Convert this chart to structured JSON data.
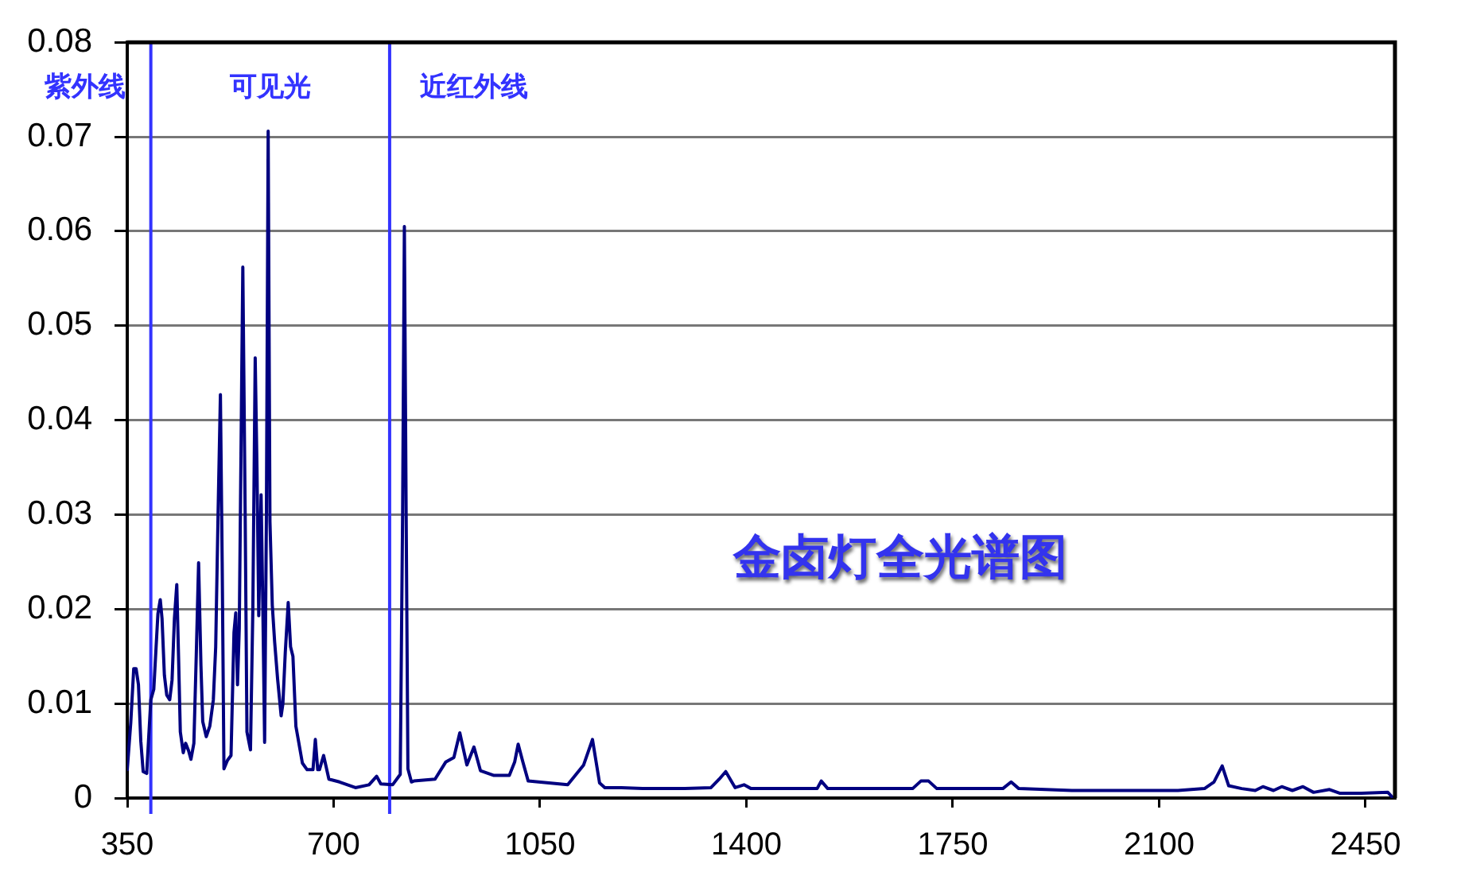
{
  "chart_data": {
    "type": "line",
    "title": "金卤灯全光谱图",
    "annotations": [
      "紫外线",
      "可见光",
      "近红外线"
    ],
    "series": [
      {
        "color": "#000080",
        "x": [
          350,
          356,
          361,
          365,
          369,
          373,
          377,
          383,
          386,
          390,
          395,
          402,
          406,
          409,
          413,
          417,
          422,
          426,
          430,
          434,
          437,
          440,
          445,
          449,
          454,
          458,
          463,
          467,
          471,
          475,
          478,
          484,
          490,
          496,
          500,
          504,
          508,
          511,
          514,
          520,
          526,
          531,
          534,
          537,
          540,
          546,
          550,
          553,
          559,
          563,
          567,
          570,
          573,
          577,
          580,
          583,
          586,
          589,
          592,
          596,
          600,
          605,
          611,
          614,
          618,
          623,
          627,
          631,
          636,
          640,
          647,
          655,
          665,
          669,
          673,
          676,
          683,
          692,
          710,
          737,
          760,
          773,
          780,
          800,
          813,
          817,
          820,
          823,
          826,
          832,
          836,
          872,
          890,
          904,
          914,
          926,
          938,
          949,
          971,
          998,
          1007,
          1013,
          1021,
          1030,
          1097,
          1124,
          1139,
          1151,
          1160,
          1188,
          1224,
          1296,
          1340,
          1354,
          1365,
          1381,
          1396,
          1408,
          1480,
          1520,
          1527,
          1538,
          1592,
          1682,
          1696,
          1709,
          1723,
          1772,
          1835,
          1849,
          1862,
          1952,
          2042,
          2132,
          2177,
          2193,
          2207,
          2218,
          2240,
          2263,
          2276,
          2294,
          2308,
          2326,
          2344,
          2362,
          2389,
          2407,
          2443,
          2488,
          2497
        ],
        "values": [
          0.003,
          0.008,
          0.0137,
          0.0137,
          0.012,
          0.006,
          0.0028,
          0.0026,
          0.006,
          0.0104,
          0.0115,
          0.0195,
          0.021,
          0.019,
          0.013,
          0.0109,
          0.0104,
          0.0125,
          0.019,
          0.0226,
          0.015,
          0.007,
          0.0048,
          0.0058,
          0.005,
          0.0041,
          0.0058,
          0.015,
          0.0249,
          0.014,
          0.0081,
          0.0065,
          0.0076,
          0.0104,
          0.016,
          0.03,
          0.0427,
          0.025,
          0.0031,
          0.004,
          0.0045,
          0.0175,
          0.0196,
          0.012,
          0.018,
          0.0562,
          0.03,
          0.007,
          0.0051,
          0.02,
          0.0466,
          0.035,
          0.0193,
          0.0321,
          0.02,
          0.0059,
          0.03,
          0.0706,
          0.0293,
          0.0204,
          0.0165,
          0.0126,
          0.0087,
          0.01,
          0.0154,
          0.0207,
          0.016,
          0.015,
          0.0076,
          0.0062,
          0.0037,
          0.003,
          0.003,
          0.0062,
          0.003,
          0.003,
          0.0045,
          0.002,
          0.0017,
          0.0011,
          0.0014,
          0.0023,
          0.0015,
          0.0014,
          0.0025,
          0.03,
          0.0605,
          0.03,
          0.0031,
          0.0017,
          0.0018,
          0.002,
          0.0038,
          0.0043,
          0.0069,
          0.0035,
          0.0054,
          0.0029,
          0.0024,
          0.0024,
          0.0038,
          0.0057,
          0.0038,
          0.0018,
          0.0014,
          0.0035,
          0.0062,
          0.0016,
          0.0011,
          0.0011,
          0.001,
          0.001,
          0.0011,
          0.002,
          0.0028,
          0.0011,
          0.0014,
          0.001,
          0.001,
          0.001,
          0.0018,
          0.001,
          0.001,
          0.001,
          0.0018,
          0.0018,
          0.001,
          0.001,
          0.001,
          0.0017,
          0.001,
          0.0008,
          0.0008,
          0.0008,
          0.001,
          0.0017,
          0.0034,
          0.0013,
          0.001,
          0.0008,
          0.0012,
          0.0008,
          0.0012,
          0.0008,
          0.0012,
          0.0006,
          0.0009,
          0.0005,
          0.0005,
          0.0006,
          0
        ]
      }
    ],
    "xlim": [
      350,
      2500
    ],
    "xticks": [
      350,
      700,
      1050,
      1400,
      1750,
      2100,
      2450
    ],
    "ylim": [
      0,
      0.08
    ],
    "yticks": [
      0,
      0.01,
      0.02,
      0.03,
      0.04,
      0.05,
      0.06,
      0.07,
      0.08
    ],
    "grid": "y",
    "marker": "none",
    "line_style": "solid",
    "ref_lines": [
      {
        "axis": "x",
        "value": 390,
        "color": "#3333ff"
      },
      {
        "axis": "x",
        "value": 795,
        "color": "#3333ff"
      }
    ]
  }
}
